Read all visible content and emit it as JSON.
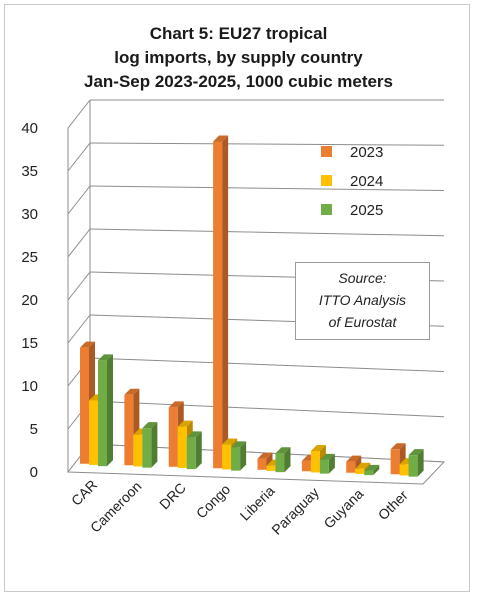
{
  "title_lines": [
    "Chart 5: EU27 tropical",
    "log imports, by supply country",
    "Jan-Sep 2023-2025, 1000 cubic meters"
  ],
  "source_box": {
    "line1": "Source:",
    "line2": "ITTO  Analysis",
    "line3": "of Eurostat"
  },
  "chart_data": {
    "type": "bar",
    "title": "Chart 5: EU27 tropical log imports, by supply country Jan-Sep 2023-2025, 1000 cubic meters",
    "categories": [
      "CAR",
      "Cameroon",
      "DRC",
      "Congo",
      "Liberia",
      "Paraguay",
      "Guyana",
      "Other"
    ],
    "series": [
      {
        "name": "2023",
        "color": "#ED7D31",
        "values": [
          13.5,
          8.2,
          6.9,
          38.0,
          1.3,
          1.2,
          1.3,
          2.9
        ]
      },
      {
        "name": "2024",
        "color": "#FFC000",
        "values": [
          7.5,
          3.7,
          4.8,
          2.9,
          0.6,
          2.5,
          0.6,
          1.3
        ]
      },
      {
        "name": "2025",
        "color": "#70AD47",
        "values": [
          12.3,
          4.6,
          3.7,
          2.7,
          2.2,
          1.6,
          0.5,
          2.5
        ]
      }
    ],
    "ylim": [
      0,
      40
    ],
    "yticks": [
      0,
      5,
      10,
      15,
      20,
      25,
      30,
      35,
      40
    ],
    "legend_position": "right",
    "grid": true
  }
}
